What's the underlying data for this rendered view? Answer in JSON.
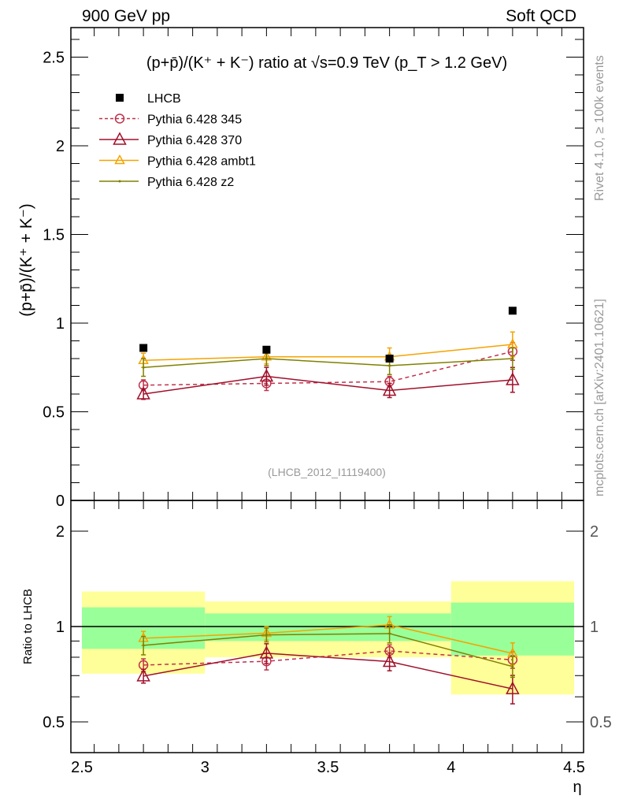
{
  "header": {
    "left": "900 GeV pp",
    "right": "Soft QCD"
  },
  "side_labels": {
    "rivet": "Rivet 4.1.0, ≥ 100k events",
    "mcplots": "mcplots.cern.ch [arXiv:2401.10621]"
  },
  "analysis_id": "(LHCB_2012_I1119400)",
  "colors": {
    "data": "#000000",
    "p345": "#c0304a",
    "p370": "#a0102a",
    "ambt1": "#f5a300",
    "z2": "#808000",
    "band_yellow": "#ffff99",
    "band_green": "#99ff99"
  },
  "chart_data": [
    {
      "type": "line",
      "title": "(p+p̄)/(K⁺ + K⁻) ratio at √s=0.9 TeV (p_T > 1.2 GeV)",
      "xlabel": "η",
      "ylabel": "(p+p̄)/(K⁺ + K⁻)",
      "xlim": [
        2.5,
        4.5
      ],
      "ylim": [
        0,
        2.67
      ],
      "yticks": [
        "0",
        "0.5",
        "1",
        "1.5",
        "2",
        "2.5"
      ],
      "yticks_values": [
        0,
        0.5,
        1,
        1.5,
        2,
        2.5
      ],
      "legend_position": "top-left",
      "x": [
        2.75,
        3.25,
        3.75,
        4.25
      ],
      "bin_edges": [
        2.5,
        3.0,
        3.5,
        4.0,
        4.5
      ],
      "series": [
        {
          "key": "data",
          "name": "LHCB",
          "values": [
            0.86,
            0.85,
            0.8,
            1.07
          ],
          "err": [
            0.0,
            0.0,
            0.0,
            0.0
          ],
          "rel_err_stat": [
            0.15,
            0.1,
            0.1,
            0.19
          ],
          "rel_err_tot": [
            0.29,
            0.2,
            0.2,
            0.39
          ]
        },
        {
          "key": "p345",
          "name": "Pythia 6.428 345",
          "values": [
            0.65,
            0.66,
            0.67,
            0.84
          ],
          "err": [
            0.03,
            0.04,
            0.03,
            0.05
          ]
        },
        {
          "key": "p370",
          "name": "Pythia 6.428 370",
          "values": [
            0.6,
            0.7,
            0.62,
            0.68
          ],
          "err": [
            0.03,
            0.05,
            0.04,
            0.07
          ]
        },
        {
          "key": "ambt1",
          "name": "Pythia 6.428 ambt1",
          "values": [
            0.79,
            0.81,
            0.81,
            0.88
          ],
          "err": [
            0.04,
            0.04,
            0.05,
            0.07
          ]
        },
        {
          "key": "z2",
          "name": "Pythia 6.428 z2",
          "values": [
            0.75,
            0.8,
            0.76,
            0.8
          ],
          "err": [
            0.05,
            0.04,
            0.05,
            0.06
          ]
        }
      ]
    },
    {
      "type": "line",
      "ylabel": "Ratio to LHCB",
      "xlabel": "η",
      "yscale": "log",
      "ylim": [
        0.4,
        2.48
      ],
      "yticks": [
        "0.5",
        "1",
        "2"
      ],
      "yticks_values": [
        0.5,
        1,
        2
      ],
      "xticks": [
        "2.5",
        "3",
        "3.5",
        "4",
        "4.5"
      ],
      "xticks_values": [
        2.5,
        3,
        3.5,
        4,
        4.5
      ],
      "reference": "LHCB"
    }
  ]
}
